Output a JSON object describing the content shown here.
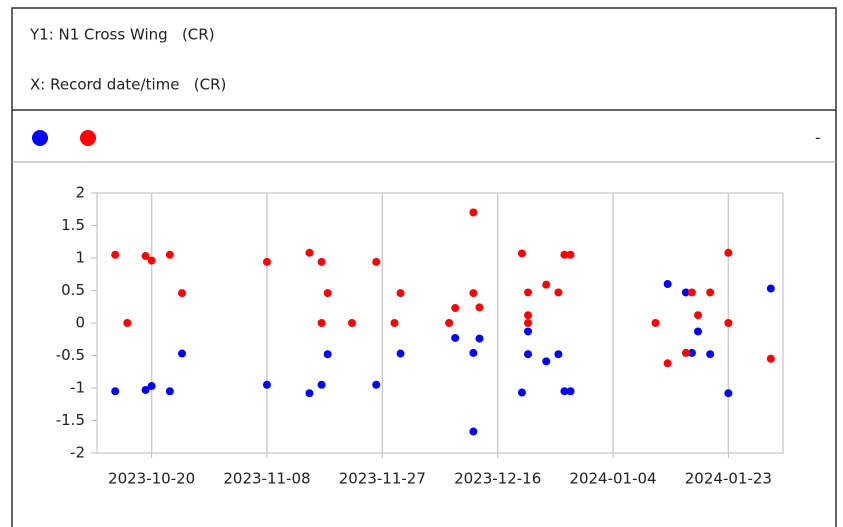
{
  "panel": {
    "y_label": "Y1: N1 Cross Wing   (CR)",
    "x_label": "X: Record date/time   (CR)",
    "legend_end": "-"
  },
  "chart_data": {
    "type": "scatter",
    "xlim": [
      "2023-10-11",
      "2024-02-01"
    ],
    "xticks": [
      "2023-10-20",
      "2023-11-08",
      "2023-11-27",
      "2023-12-16",
      "2024-01-04",
      "2024-01-23"
    ],
    "ylim": [
      -2,
      2
    ],
    "yticks": [
      2,
      1.5,
      1,
      0.5,
      0,
      -0.5,
      -1,
      -1.5,
      -2
    ],
    "grid": "x",
    "series": [
      {
        "color": "#0000ff",
        "x": [
          "2023-10-14",
          "2023-10-19",
          "2023-10-20",
          "2023-10-23",
          "2023-10-25",
          "2023-11-08",
          "2023-11-15",
          "2023-11-17",
          "2023-11-18",
          "2023-11-26",
          "2023-11-30",
          "2023-12-09",
          "2023-12-12",
          "2023-12-12",
          "2023-12-13",
          "2023-12-20",
          "2023-12-21",
          "2023-12-21",
          "2023-12-24",
          "2023-12-26",
          "2023-12-27",
          "2023-12-28",
          "2024-01-13",
          "2024-01-16",
          "2024-01-17",
          "2024-01-18",
          "2024-01-20",
          "2024-01-23",
          "2024-01-30"
        ],
        "values": [
          -1.05,
          -1.03,
          -0.97,
          -1.05,
          -0.47,
          -0.95,
          -1.08,
          -0.95,
          -0.48,
          -0.95,
          -0.47,
          -0.23,
          -0.46,
          -1.67,
          -0.24,
          -1.07,
          -0.48,
          -0.13,
          -0.59,
          -0.48,
          -1.05,
          -1.05,
          0.6,
          0.47,
          -0.46,
          -0.13,
          -0.48,
          -1.08,
          0.53
        ]
      },
      {
        "color": "#ff0000",
        "x": [
          "2023-10-14",
          "2023-10-16",
          "2023-10-19",
          "2023-10-20",
          "2023-10-23",
          "2023-10-25",
          "2023-11-08",
          "2023-11-15",
          "2023-11-17",
          "2023-11-17",
          "2023-11-18",
          "2023-11-22",
          "2023-11-26",
          "2023-11-29",
          "2023-11-30",
          "2023-12-08",
          "2023-12-09",
          "2023-12-12",
          "2023-12-12",
          "2023-12-13",
          "2023-12-20",
          "2023-12-21",
          "2023-12-21",
          "2023-12-21",
          "2023-12-24",
          "2023-12-26",
          "2023-12-27",
          "2023-12-28",
          "2024-01-11",
          "2024-01-13",
          "2024-01-16",
          "2024-01-17",
          "2024-01-18",
          "2024-01-20",
          "2024-01-23",
          "2024-01-23",
          "2024-01-30"
        ],
        "values": [
          1.05,
          0,
          1.03,
          0.96,
          1.05,
          0.46,
          0.94,
          1.08,
          0.94,
          0,
          0.46,
          0,
          0.94,
          0,
          0.46,
          0,
          0.23,
          1.7,
          0.46,
          0.24,
          1.07,
          0,
          0.47,
          0.12,
          0.59,
          0.47,
          1.05,
          1.05,
          0,
          -0.62,
          -0.46,
          0.47,
          0.12,
          0.47,
          1.08,
          0,
          -0.55
        ]
      }
    ]
  }
}
